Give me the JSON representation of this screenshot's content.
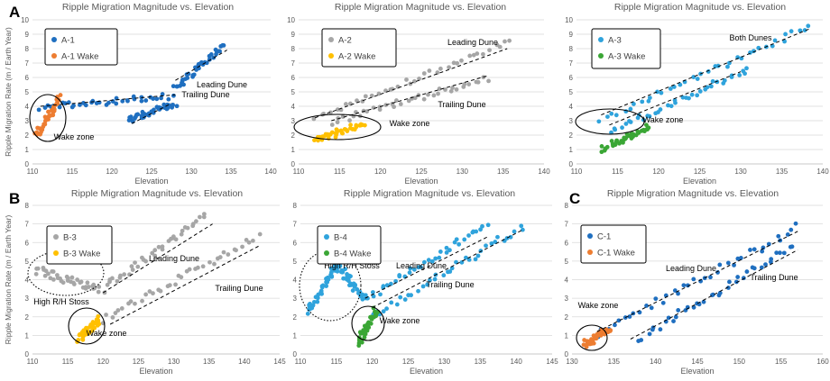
{
  "figure": {
    "colors": {
      "blue": "#1f6fc0",
      "orange": "#ed7d31",
      "gray": "#a6a6a6",
      "yellow": "#ffc000",
      "lightblue": "#2fa3dc",
      "green": "#3aa635"
    }
  },
  "chart_data": [
    {
      "type": "scatter",
      "panel_letter": "A",
      "title": "Ripple Migration Magnitude vs. Elevation",
      "xlabel": "Elevation",
      "ylabel": "Ripple Migration Rate (m / Earth Year)",
      "xlim": [
        110,
        140
      ],
      "ylim": [
        0,
        10
      ],
      "xticks": [
        110,
        115,
        120,
        125,
        130,
        135,
        140
      ],
      "yticks": [
        0,
        1,
        2,
        3,
        4,
        5,
        6,
        7,
        8,
        9,
        10
      ],
      "legend": [
        "A-1",
        "A-1 Wake"
      ],
      "legend_colors": [
        "blue",
        "orange"
      ],
      "annotations": [
        "Trailing Dune",
        "Leading Dune",
        "Wake zone"
      ],
      "series": [
        {
          "name": "A-1",
          "color": "blue",
          "segments": [
            [
              111,
              3.9,
              127.5,
              4.7
            ],
            [
              122,
              3.0,
              128,
              4.2
            ],
            [
              128,
              5.2,
              134,
              8.2
            ]
          ]
        },
        {
          "name": "A-1 Wake",
          "color": "orange",
          "segments": [
            [
              110.5,
              2.0,
              113.5,
              4.6
            ]
          ]
        }
      ],
      "trendlines": [
        [
          111,
          4.0,
          128,
          4.8
        ],
        [
          122.5,
          2.8,
          127.5,
          4.2
        ],
        [
          128,
          5.8,
          134.5,
          7.9
        ]
      ]
    },
    {
      "type": "scatter",
      "panel_letter": "",
      "title": "Ripple Migration Magnitude vs. Elevation",
      "xlabel": "Elevation",
      "ylabel": "",
      "xlim": [
        110,
        140
      ],
      "ylim": [
        0,
        10
      ],
      "xticks": [
        110,
        115,
        120,
        125,
        130,
        135,
        140
      ],
      "yticks": [
        0,
        1,
        2,
        3,
        4,
        5,
        6,
        7,
        8,
        9,
        10
      ],
      "legend": [
        "A-2",
        "A-2 Wake"
      ],
      "legend_colors": [
        "gray",
        "yellow"
      ],
      "annotations": [
        "Leading Dune",
        "Trailing Dune",
        "Wake zone"
      ],
      "series": [
        {
          "name": "A-2",
          "color": "gray",
          "segments": [
            [
              112,
              3.2,
              136,
              8.5
            ],
            [
              114,
              2.9,
              133,
              5.9
            ]
          ]
        },
        {
          "name": "A-2 Wake",
          "color": "yellow",
          "segments": [
            [
              112,
              1.6,
              118,
              2.8
            ]
          ]
        }
      ],
      "trendlines": [
        [
          112,
          3.2,
          135.5,
          8.0
        ],
        [
          114,
          3.0,
          133,
          6.1
        ]
      ]
    },
    {
      "type": "scatter",
      "panel_letter": "",
      "title": "Ripple Migration Magnitude vs. Elevation",
      "xlabel": "Elevation",
      "ylabel": "",
      "xlim": [
        110,
        140
      ],
      "ylim": [
        0,
        10
      ],
      "xticks": [
        110,
        115,
        120,
        125,
        130,
        135,
        140
      ],
      "yticks": [
        0,
        1,
        2,
        3,
        4,
        5,
        6,
        7,
        8,
        9,
        10
      ],
      "legend": [
        "A-3",
        "A-3 Wake"
      ],
      "legend_colors": [
        "lightblue",
        "green"
      ],
      "annotations": [
        "Both Dunes",
        "Wake zone"
      ],
      "series": [
        {
          "name": "A-3",
          "color": "lightblue",
          "segments": [
            [
              113,
              3.0,
              138.5,
              9.6
            ],
            [
              114,
              2.2,
              131,
              6.6
            ]
          ]
        },
        {
          "name": "A-3 Wake",
          "color": "green",
          "segments": [
            [
              113,
              1.0,
              119,
              2.6
            ]
          ]
        }
      ],
      "trendlines": [
        [
          113,
          3.4,
          138.5,
          9.4
        ],
        [
          114,
          2.7,
          130,
          6.4
        ]
      ]
    },
    {
      "type": "scatter",
      "panel_letter": "B",
      "title": "Ripple Migration Magnitude vs. Elevation",
      "xlabel": "Elevation",
      "ylabel": "Ripple Migration Rate (m / Earth Year)",
      "xlim": [
        110,
        145
      ],
      "ylim": [
        0,
        8
      ],
      "xticks": [
        110,
        115,
        120,
        125,
        130,
        135,
        140,
        145
      ],
      "yticks": [
        0,
        1,
        2,
        3,
        4,
        5,
        6,
        7,
        8
      ],
      "legend": [
        "B-3",
        "B-3 Wake"
      ],
      "legend_colors": [
        "gray",
        "yellow"
      ],
      "annotations": [
        "Leading Dune",
        "High R/H Stoss",
        "Trailing Dune",
        "Wake zone"
      ],
      "series": [
        {
          "name": "B-3",
          "color": "gray",
          "segments": [
            [
              110.5,
              4.5,
              119.5,
              3.5
            ],
            [
              120,
              3.5,
              134.5,
              7.4
            ],
            [
              120,
              1.8,
              142,
              6.4
            ]
          ]
        },
        {
          "name": "B-3 Wake",
          "color": "yellow",
          "segments": [
            [
              116.5,
              0.8,
              119.5,
              1.8
            ]
          ]
        }
      ],
      "trendlines": [
        [
          120,
          3.3,
          135.5,
          7.0
        ],
        [
          121,
          1.6,
          142,
          5.8
        ]
      ]
    },
    {
      "type": "scatter",
      "panel_letter": "",
      "title": "Ripple Migration Magnitude vs. Elevation",
      "xlabel": "Elevation",
      "ylabel": "",
      "xlim": [
        110,
        145
      ],
      "ylim": [
        0,
        8
      ],
      "xticks": [
        110,
        115,
        120,
        125,
        130,
        135,
        140,
        145
      ],
      "yticks": [
        0,
        1,
        2,
        3,
        4,
        5,
        6,
        7,
        8
      ],
      "legend": [
        "B-4",
        "B-4 Wake"
      ],
      "legend_colors": [
        "lightblue",
        "green"
      ],
      "annotations": [
        "Leading Dune",
        "High R/H Stoss",
        "Trailing Dune",
        "Wake zone"
      ],
      "series": [
        {
          "name": "B-4",
          "color": "lightblue",
          "segments": [
            [
              111,
              2.2,
              115,
              4.8
            ],
            [
              115,
              4.8,
              119,
              3.0
            ],
            [
              119,
              3.0,
              136,
              6.9
            ],
            [
              120,
              2.0,
              141,
              6.9
            ]
          ]
        },
        {
          "name": "B-4 Wake",
          "color": "green",
          "segments": [
            [
              118,
              0.5,
              120.5,
              2.4
            ]
          ]
        }
      ],
      "trendlines": [
        [
          119,
          3.0,
          136,
          6.3
        ],
        [
          120,
          2.5,
          141,
          6.7
        ]
      ]
    },
    {
      "type": "scatter",
      "panel_letter": "C",
      "title": "Ripple Migration Magnitude vs. Elevation",
      "xlabel": "Elevation",
      "ylabel": "",
      "xlim": [
        130,
        160
      ],
      "ylim": [
        0,
        8
      ],
      "xticks": [
        130,
        135,
        140,
        145,
        150,
        155,
        160
      ],
      "yticks": [
        0,
        1,
        2,
        3,
        4,
        5,
        6,
        7,
        8
      ],
      "legend": [
        "C-1",
        "C-1 Wake"
      ],
      "legend_colors": [
        "blue",
        "orange"
      ],
      "annotations": [
        "Leading Dune",
        "Trailing Dune",
        "Wake zone"
      ],
      "series": [
        {
          "name": "C-1",
          "color": "blue",
          "segments": [
            [
              133,
              1.1,
              157,
              6.8
            ],
            [
              138,
              0.8,
              156.5,
              5.8
            ]
          ]
        },
        {
          "name": "C-1 Wake",
          "color": "orange",
          "segments": [
            [
              131.5,
              0.5,
              134.5,
              1.4
            ]
          ]
        }
      ],
      "trendlines": [
        [
          133,
          1.2,
          157,
          6.6
        ],
        [
          137,
          0.8,
          157,
          5.6
        ]
      ]
    }
  ]
}
